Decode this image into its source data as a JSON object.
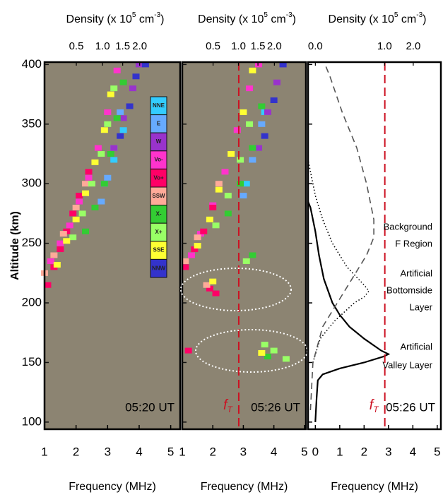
{
  "chart_data": [
    {
      "type": "scatter",
      "background": "#8c8472",
      "x2label": [
        "Density (x 10",
        "5",
        " cm",
        "-3",
        ")"
      ],
      "x2ticks": [
        0.5,
        {
          "value": 1,
          "label": "1.0"
        },
        1.5,
        {
          "value": 2,
          "label": "2.0"
        }
      ],
      "xlabel": "Frequency (MHz)",
      "ylabel": "Altitude (km)",
      "xlim": [
        1,
        5.3
      ],
      "xticks": [
        1,
        2,
        3,
        4,
        5
      ],
      "ylim": [
        94,
        402
      ],
      "yticks": [
        100,
        150,
        200,
        250,
        300,
        350,
        400
      ],
      "time_label": "05:20 UT",
      "series": [
        {
          "name": "NNE",
          "color": "#33ccff",
          "x": [
            2.9,
            3.2,
            3.5
          ],
          "values": [
            300,
            320,
            345
          ]
        },
        {
          "name": "E",
          "color": "#66aaff",
          "x": [
            2.8,
            3.0,
            3.2,
            3.4
          ],
          "values": [
            285,
            305,
            330,
            360
          ]
        },
        {
          "name": "W",
          "color": "#9933cc",
          "x": [
            3.2,
            3.5,
            3.8,
            4.0
          ],
          "values": [
            330,
            355,
            380,
            400
          ]
        },
        {
          "name": "Vo-",
          "color": "#ff33cc",
          "x": [
            1.2,
            1.5,
            1.8,
            2.1,
            2.4,
            2.7,
            3.0,
            3.3
          ],
          "values": [
            235,
            250,
            265,
            285,
            305,
            330,
            360,
            395
          ]
        },
        {
          "name": "Vo+",
          "color": "#ff0066",
          "x": [
            1.1,
            1.3,
            1.5,
            1.7,
            1.9,
            2.1,
            2.4
          ],
          "values": [
            215,
            230,
            245,
            260,
            275,
            290,
            310
          ]
        },
        {
          "name": "SSW",
          "color": "#ffaa99",
          "x": [
            1.0,
            1.3,
            1.6,
            2.0,
            2.3
          ],
          "values": [
            225,
            240,
            258,
            280,
            300
          ]
        },
        {
          "name": "X-",
          "color": "#33cc33",
          "x": [
            2.3,
            2.6,
            2.9,
            3.1,
            3.3,
            3.5
          ],
          "values": [
            260,
            280,
            300,
            325,
            355,
            385
          ]
        },
        {
          "name": "X+",
          "color": "#99ff66",
          "x": [
            1.9,
            2.2,
            2.5,
            2.8,
            3.0,
            3.2
          ],
          "values": [
            255,
            275,
            300,
            325,
            350,
            380
          ]
        },
        {
          "name": "SSE",
          "color": "#ffff33",
          "x": [
            1.4,
            1.7,
            2.0,
            2.3,
            2.6,
            2.9,
            3.1
          ],
          "values": [
            232,
            252,
            270,
            292,
            318,
            345,
            375
          ]
        },
        {
          "name": "NNW",
          "color": "#3333cc",
          "x": [
            3.4,
            3.7,
            3.9,
            4.2
          ],
          "values": [
            340,
            365,
            390,
            400
          ]
        }
      ]
    },
    {
      "type": "scatter",
      "background": "#8c8472",
      "x2label": [
        "Density (x 10",
        "5",
        " cm",
        "-3",
        ")"
      ],
      "x2ticks": [
        0.5,
        {
          "value": 1,
          "label": "1.0"
        },
        1.5,
        {
          "value": 2,
          "label": "2.0"
        }
      ],
      "xlabel": "Frequency (MHz)",
      "xlim": [
        1,
        5.05
      ],
      "xticks": [
        1,
        2,
        3,
        4,
        5
      ],
      "ylim": [
        94,
        402
      ],
      "time_label": "05:26 UT",
      "vline": {
        "value": 2.85,
        "color": "#cc1122",
        "label": "f",
        "label_sub": "T"
      },
      "series": [
        {
          "color": "#33ccff",
          "x": [
            3.1,
            3.4,
            3.7
          ],
          "values": [
            300,
            330,
            360
          ]
        },
        {
          "color": "#66aaff",
          "x": [
            3.0,
            3.3,
            3.6
          ],
          "values": [
            290,
            320,
            350
          ]
        },
        {
          "color": "#9933cc",
          "x": [
            3.5,
            3.8,
            4.1,
            4.3
          ],
          "values": [
            330,
            360,
            385,
            400
          ]
        },
        {
          "color": "#ff33cc",
          "x": [
            1.3,
            1.6,
            2.0,
            2.4,
            2.8,
            3.2,
            3.5
          ],
          "values": [
            240,
            258,
            282,
            310,
            345,
            380,
            400
          ]
        },
        {
          "color": "#ff0066",
          "x": [
            1.1,
            1.4,
            1.7,
            2.0,
            1.9,
            2.1,
            1.2
          ],
          "values": [
            230,
            245,
            260,
            280,
            212,
            208,
            160
          ]
        },
        {
          "color": "#ffaa99",
          "x": [
            1.1,
            1.5,
            1.8,
            2.2
          ],
          "values": [
            235,
            255,
            215,
            300
          ]
        },
        {
          "color": "#33cc33",
          "x": [
            2.5,
            2.9,
            3.3,
            3.6,
            3.3,
            3.8
          ],
          "values": [
            275,
            300,
            330,
            365,
            240,
            155
          ]
        },
        {
          "color": "#99ff66",
          "x": [
            2.1,
            2.5,
            2.9,
            3.2,
            3.1,
            3.7,
            4.0,
            4.4
          ],
          "values": [
            265,
            290,
            320,
            350,
            235,
            165,
            160,
            153
          ]
        },
        {
          "color": "#ffff33",
          "x": [
            1.5,
            1.9,
            2.2,
            2.6,
            3.0,
            3.3,
            2.0,
            3.6
          ],
          "values": [
            248,
            270,
            295,
            325,
            360,
            395,
            218,
            158
          ]
        },
        {
          "color": "#3333cc",
          "x": [
            3.7,
            4.0,
            4.3
          ],
          "values": [
            340,
            370,
            400
          ]
        }
      ]
    },
    {
      "type": "line",
      "background": "#ffffff",
      "x2label": [
        "Density (x 10",
        "5",
        " cm",
        "-3",
        ")"
      ],
      "x2ticks": [
        {
          "value": 0,
          "label": "0.0"
        },
        {
          "value": 1,
          "label": "1.0"
        },
        {
          "value": 2,
          "label": "2.0"
        }
      ],
      "xlabel": "Frequency (MHz)",
      "xlim": [
        -0.3,
        5.15
      ],
      "xticks": [
        0,
        1,
        2,
        3,
        4,
        5
      ],
      "ylim": [
        94,
        402
      ],
      "time_label": "05:26 UT",
      "vline": {
        "value": 2.85,
        "color": "#cc1122",
        "label": "f",
        "label_sub": "T"
      },
      "annotations": [
        {
          "lines": [
            "Background",
            "F Region"
          ]
        },
        {
          "lines": [
            "Artificial",
            "Bottomside",
            "Layer"
          ]
        },
        {
          "lines": [
            "Artificial",
            "Valley Layer"
          ]
        }
      ],
      "series": [
        {
          "color": "#000000",
          "dash": "solid",
          "y": [
            100,
            120,
            135,
            140,
            145,
            150,
            155,
            157,
            160,
            170,
            180,
            190,
            200,
            220,
            240,
            260,
            280,
            285
          ],
          "values": [
            0.0,
            0.05,
            0.1,
            0.3,
            1.0,
            2.0,
            2.8,
            3.0,
            2.7,
            2.0,
            1.4,
            1.0,
            0.7,
            0.35,
            0.15,
            0.0,
            -0.2,
            -0.3
          ]
        },
        {
          "color": "#000000",
          "dash": "dotted",
          "y": [
            150,
            170,
            185,
            200,
            205,
            210,
            215,
            230,
            250,
            270,
            290,
            320
          ],
          "values": [
            -0.1,
            0.2,
            0.8,
            1.6,
            2.0,
            2.2,
            2.0,
            1.3,
            0.7,
            0.3,
            0.0,
            -0.3
          ]
        },
        {
          "color": "#555555",
          "dash": "dashed",
          "y": [
            110,
            150,
            180,
            200,
            220,
            240,
            255,
            270,
            300,
            330,
            360,
            390,
            400
          ],
          "values": [
            -0.2,
            -0.1,
            0.3,
            0.9,
            1.5,
            2.1,
            2.4,
            2.4,
            2.1,
            1.7,
            1.1,
            0.6,
            0.4
          ]
        }
      ]
    }
  ]
}
